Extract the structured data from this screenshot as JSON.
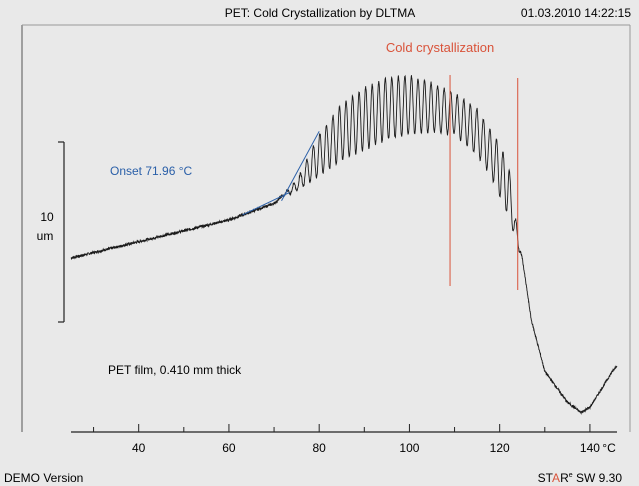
{
  "header": {
    "title": "PET: Cold Crystallization by DLTMA",
    "timestamp": "01.03.2010 14:22:15"
  },
  "footer": {
    "left": "DEMO Version",
    "brand_st": "ST",
    "brand_a": "A",
    "brand_r": "R",
    "brand_sup": "e",
    "brand_rest": " SW 9.30"
  },
  "colors": {
    "background": "#e9e9e9",
    "curve": "#1a1a1a",
    "onset": "#2a5fa8",
    "cold_cryst": "#d9533a"
  },
  "chart_data": {
    "type": "line",
    "title": "PET: Cold Crystallization by DLTMA",
    "x_unit": "°C",
    "x_ticks": [
      "40",
      "60",
      "80",
      "100",
      "120",
      "140"
    ],
    "xlim": [
      25,
      146
    ],
    "scale_bar": {
      "value": "10",
      "unit": "um"
    },
    "series": [
      {
        "envelope_upper": [
          [
            25,
            0
          ],
          [
            60,
            3.7
          ],
          [
            70,
            5.3
          ],
          [
            75,
            7.5
          ],
          [
            80,
            12
          ],
          [
            85,
            15
          ],
          [
            90,
            16.5
          ],
          [
            95,
            17.5
          ],
          [
            100,
            17.7
          ],
          [
            105,
            17
          ],
          [
            110,
            16
          ],
          [
            115,
            14.5
          ],
          [
            120,
            11
          ],
          [
            122,
            9
          ],
          [
            124,
            2.4
          ],
          [
            125,
            0
          ],
          [
            127,
            -6
          ],
          [
            130,
            -11
          ],
          [
            135,
            -14
          ],
          [
            138,
            -15
          ],
          [
            140,
            -14.5
          ],
          [
            145,
            -11
          ],
          [
            146,
            -10.4
          ]
        ],
        "envelope_lower": [
          [
            25,
            0
          ],
          [
            60,
            3.7
          ],
          [
            70,
            5.3
          ],
          [
            72,
            6
          ],
          [
            75,
            6.5
          ],
          [
            80,
            8
          ],
          [
            85,
            9.5
          ],
          [
            90,
            10.5
          ],
          [
            95,
            11.5
          ],
          [
            100,
            12
          ],
          [
            105,
            12.2
          ],
          [
            110,
            12
          ],
          [
            115,
            10
          ],
          [
            118,
            8
          ],
          [
            120,
            6
          ],
          [
            122,
            4
          ],
          [
            124,
            1
          ],
          [
            125,
            0
          ],
          [
            127,
            -6
          ],
          [
            130,
            -11
          ],
          [
            135,
            -14
          ],
          [
            138,
            -15
          ],
          [
            140,
            -14.5
          ],
          [
            145,
            -11
          ],
          [
            146,
            -10.4
          ]
        ],
        "oscillation_start_c": 70,
        "oscillation_end_c": 125,
        "oscillation_period_c": 1.45
      }
    ],
    "onset": {
      "label": "Onset 71.96 °C",
      "x": 71.96
    },
    "cold_crystallization": {
      "label": "Cold crystallization",
      "lines_x": [
        109,
        124
      ]
    },
    "annotation": "PET film, 0.410 mm thick"
  }
}
